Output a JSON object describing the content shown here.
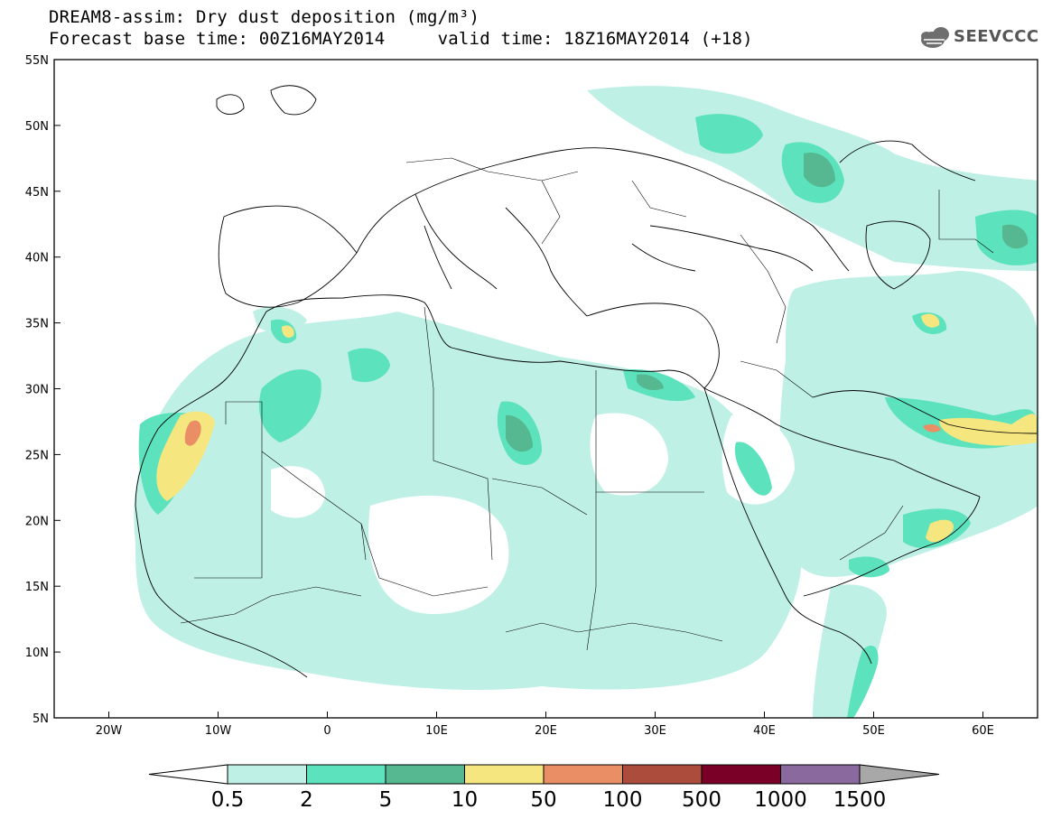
{
  "header": {
    "title": "DREAM8-assim: Dry dust deposition (mg/m³)",
    "forecast": "Forecast base time: 00Z16MAY2014     valid time: 18Z16MAY2014 (+18)"
  },
  "logo": {
    "text": "SEEVCCC",
    "icon": "cloud-logo-icon"
  },
  "map": {
    "lon_range": [
      -25,
      65
    ],
    "lat_range": [
      5,
      55
    ],
    "lon_ticks": [
      {
        "v": -20,
        "label": "20W"
      },
      {
        "v": -10,
        "label": "10W"
      },
      {
        "v": 0,
        "label": "0"
      },
      {
        "v": 10,
        "label": "10E"
      },
      {
        "v": 20,
        "label": "20E"
      },
      {
        "v": 30,
        "label": "30E"
      },
      {
        "v": 40,
        "label": "40E"
      },
      {
        "v": 50,
        "label": "50E"
      },
      {
        "v": 60,
        "label": "60E"
      }
    ],
    "lat_ticks": [
      {
        "v": 55,
        "label": "55N"
      },
      {
        "v": 50,
        "label": "50N"
      },
      {
        "v": 45,
        "label": "45N"
      },
      {
        "v": 40,
        "label": "40N"
      },
      {
        "v": 35,
        "label": "35N"
      },
      {
        "v": 30,
        "label": "30N"
      },
      {
        "v": 25,
        "label": "25N"
      },
      {
        "v": 20,
        "label": "20N"
      },
      {
        "v": 15,
        "label": "15N"
      },
      {
        "v": 10,
        "label": "10N"
      },
      {
        "v": 5,
        "label": "5N"
      }
    ]
  },
  "colorbar": {
    "colors": [
      "#bff0e6",
      "#5ce2bc",
      "#56b890",
      "#f5e680",
      "#ea8e66",
      "#ac4c3c",
      "#7a0028",
      "#8a6a9e"
    ],
    "over_color": "#a8a8a8",
    "labels": [
      "0.5",
      "2",
      "5",
      "10",
      "50",
      "100",
      "500",
      "1000",
      "1500"
    ]
  }
}
